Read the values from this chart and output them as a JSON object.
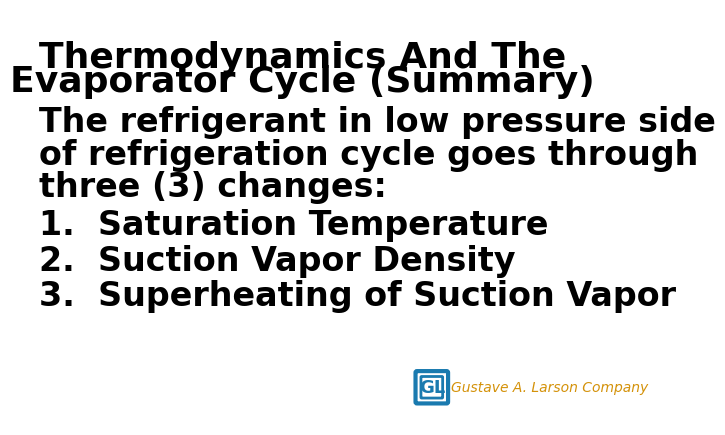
{
  "title_line1": "Thermodynamics And The",
  "title_line2": "Evaporator Cycle (Summary)",
  "body_line1": "The refrigerant in low pressure side",
  "body_line2": "of refrigeration cycle goes through",
  "body_line3": "three (3) changes:",
  "item1": "1.  Saturation Temperature",
  "item2": "2.  Suction Vapor Density",
  "item3": "3.  Superheating of Suction Vapor",
  "logo_text": "Gustave A. Larson Company",
  "title_color": "#000000",
  "body_color": "#000000",
  "logo_text_color": "#D4920A",
  "logo_icon_color": "#1A7AAF",
  "background_color": "#ffffff",
  "title_fontsize": 26,
  "body_fontsize": 24,
  "logo_fontsize": 10
}
